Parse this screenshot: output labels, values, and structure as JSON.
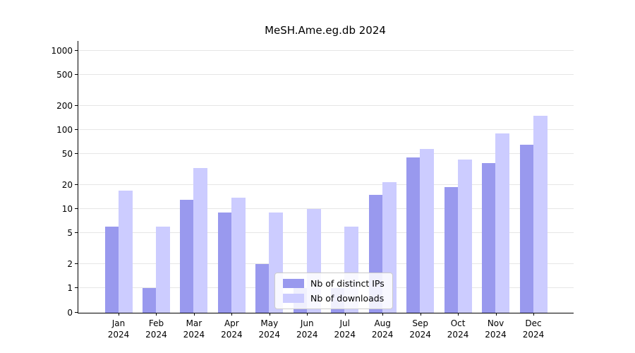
{
  "chart_data": {
    "type": "bar",
    "title": "MeSH.Ame.eg.db 2024",
    "categories": [
      "Jan",
      "Feb",
      "Mar",
      "Apr",
      "May",
      "Jun",
      "Jul",
      "Aug",
      "Sep",
      "Oct",
      "Nov",
      "Dec"
    ],
    "category_year": "2024",
    "series": [
      {
        "name": "Nb of distinct IPs",
        "color": "#9999ee",
        "values": [
          6,
          1,
          13,
          9,
          2,
          1,
          1,
          15,
          45,
          19,
          38,
          65
        ]
      },
      {
        "name": "Nb of downloads",
        "color": "#ccccff",
        "values": [
          17,
          6,
          33,
          14,
          9,
          10,
          6,
          22,
          57,
          42,
          90,
          150
        ]
      }
    ],
    "yticks": [
      0,
      1,
      2,
      5,
      10,
      20,
      50,
      100,
      200,
      500,
      1000
    ],
    "ylim": [
      0,
      1000
    ],
    "scale": "symlog",
    "grid": true,
    "legend_position": "inside-bottom-center"
  }
}
